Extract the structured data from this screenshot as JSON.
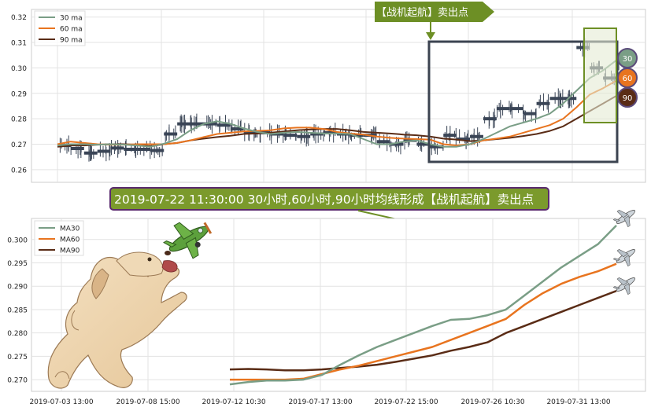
{
  "banner_top": "【战机起航】卖出点",
  "banner_mid": "2019-07-22 11:30:00 30小时,60小时,90小时均线形成【战机起航】卖出点",
  "colors": {
    "ma30": "#7a9e86",
    "ma60": "#e8741f",
    "ma90": "#5a2c16",
    "price": "#3a4556",
    "box": "#3b4350",
    "banner_top_bg": "#6d8f25",
    "banner_mid_border": "#5a2a6e",
    "banner_mid_bg": "#7b9a2c",
    "plane_green": "#5ca03c"
  },
  "chart_data": [
    {
      "type": "line",
      "id": "top",
      "ylim": [
        0.255,
        0.323
      ],
      "yticks": [
        "0.32",
        "0.31",
        "0.30",
        "0.29",
        "0.28",
        "0.27",
        "0.26"
      ],
      "legend_position": "top-left",
      "series": [
        {
          "name": "30 ma",
          "key": "ma30",
          "values": [
            0.2695,
            0.27,
            0.27,
            0.2698,
            0.27,
            0.2698,
            0.2695,
            0.269,
            0.2702,
            0.272,
            0.2755,
            0.278,
            0.279,
            0.278,
            0.2762,
            0.2748,
            0.274,
            0.2745,
            0.2748,
            0.2745,
            0.2742,
            0.2742,
            0.274,
            0.272,
            0.27,
            0.27,
            0.271,
            0.2715,
            0.27,
            0.269,
            0.269,
            0.27,
            0.272,
            0.2745,
            0.277,
            0.2785,
            0.28,
            0.282,
            0.286,
            0.291,
            0.296,
            0.299,
            0.303
          ]
        },
        {
          "name": "60 ma",
          "key": "ma60",
          "values": [
            0.27,
            0.271,
            0.2705,
            0.27,
            0.2698,
            0.2698,
            0.27,
            0.27,
            0.27,
            0.2705,
            0.2715,
            0.2728,
            0.274,
            0.2745,
            0.275,
            0.2752,
            0.2755,
            0.2762,
            0.2765,
            0.2765,
            0.276,
            0.2748,
            0.2742,
            0.2738,
            0.273,
            0.2725,
            0.2722,
            0.272,
            0.2718,
            0.27,
            0.2695,
            0.27,
            0.2715,
            0.2722,
            0.273,
            0.2745,
            0.276,
            0.2775,
            0.28,
            0.2845,
            0.2895,
            0.292,
            0.295
          ]
        },
        {
          "name": "90 ma",
          "key": "ma90",
          "values": [
            0.269,
            0.2695,
            0.2695,
            0.2698,
            0.27,
            0.27,
            0.2698,
            0.2692,
            0.27,
            0.2705,
            0.2715,
            0.2722,
            0.2728,
            0.2733,
            0.274,
            0.2742,
            0.2745,
            0.275,
            0.2755,
            0.2758,
            0.276,
            0.276,
            0.2755,
            0.2748,
            0.2745,
            0.2742,
            0.2738,
            0.2735,
            0.273,
            0.2722,
            0.2718,
            0.2712,
            0.2715,
            0.272,
            0.2725,
            0.2732,
            0.274,
            0.2752,
            0.277,
            0.28,
            0.283,
            0.286,
            0.289
          ]
        }
      ],
      "price_levels": [
        0.2695,
        0.2683,
        0.2665,
        0.2672,
        0.2685,
        0.268,
        0.268,
        0.2675,
        0.274,
        0.278,
        0.278,
        0.278,
        0.2775,
        0.276,
        0.2745,
        0.2745,
        0.274,
        0.2735,
        0.273,
        0.274,
        0.2745,
        0.274,
        0.2735,
        0.2735,
        0.271,
        0.27,
        0.2715,
        0.27,
        0.269,
        0.2735,
        0.272,
        0.273,
        0.28,
        0.284,
        0.284,
        0.282,
        0.286,
        0.288,
        0.288,
        0.308,
        0.3,
        0.296,
        0.302
      ]
    },
    {
      "type": "line",
      "id": "bottom",
      "ylim": [
        0.2675,
        0.3045
      ],
      "yticks": [
        "0.300",
        "0.295",
        "0.290",
        "0.285",
        "0.280",
        "0.275",
        "0.270"
      ],
      "xticks": [
        "2019-07-03 13:00",
        "2019-07-08 15:00",
        "2019-07-12 10:30",
        "2019-07-17 13:00",
        "2019-07-22 15:00",
        "2019-07-26 10:30",
        "2019-07-31 13:00"
      ],
      "legend_position": "top-left",
      "series": [
        {
          "name": "MA30",
          "key": "ma30",
          "values": [
            0.269,
            0.2695,
            0.2698,
            0.2698,
            0.27,
            0.271,
            0.2732,
            0.2752,
            0.277,
            0.2785,
            0.28,
            0.2815,
            0.2828,
            0.283,
            0.2838,
            0.285,
            0.288,
            0.291,
            0.294,
            0.2965,
            0.299,
            0.303
          ]
        },
        {
          "name": "MA60",
          "key": "ma60",
          "values": [
            0.27,
            0.27,
            0.27,
            0.27,
            0.2702,
            0.2712,
            0.2722,
            0.273,
            0.274,
            0.275,
            0.276,
            0.277,
            0.2785,
            0.28,
            0.2815,
            0.283,
            0.286,
            0.2885,
            0.2905,
            0.292,
            0.2932,
            0.2948
          ]
        },
        {
          "name": "MA90",
          "key": "ma90",
          "values": [
            0.2722,
            0.2723,
            0.2722,
            0.272,
            0.272,
            0.2722,
            0.2725,
            0.2728,
            0.2732,
            0.2738,
            0.2745,
            0.2752,
            0.2762,
            0.277,
            0.278,
            0.28,
            0.2815,
            0.283,
            0.2845,
            0.286,
            0.2875,
            0.289
          ]
        }
      ]
    }
  ]
}
